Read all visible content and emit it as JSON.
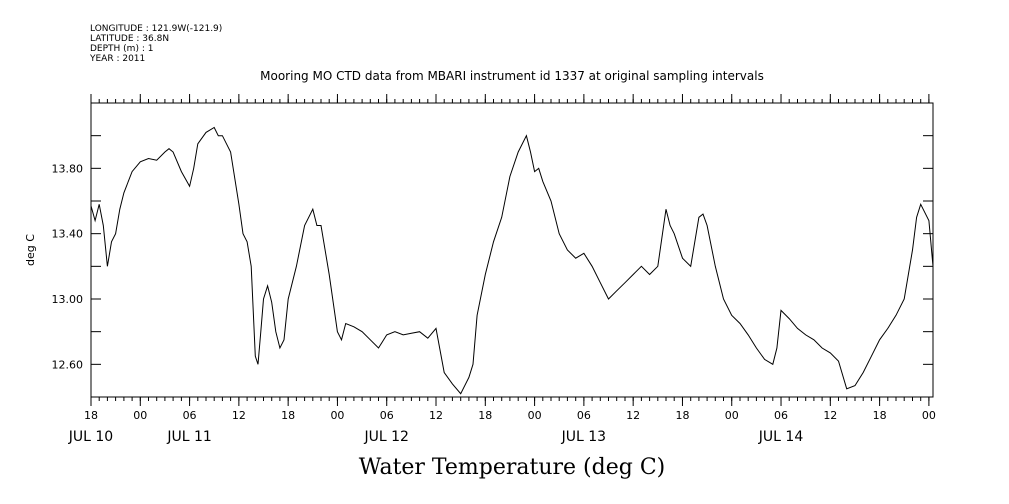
{
  "header": {
    "meta_lines": [
      "LONGITUDE : 121.9W(-121.9)",
      "LATITUDE : 36.8N",
      "DEPTH (m) : 1",
      "YEAR : 2011"
    ]
  },
  "chart_data": {
    "type": "line",
    "title": "Mooring MO CTD data from MBARI instrument id 1337 at original sampling intervals",
    "xlabel": "Water Temperature (deg C)",
    "ylabel": "deg C",
    "ylim": [
      12.4,
      14.2
    ],
    "yticks": [
      12.6,
      13.0,
      13.4,
      13.8
    ],
    "ytick_labels": [
      "12.60",
      "13.00",
      "13.40",
      "13.80"
    ],
    "xlim": [
      "2011-07-10 18:00",
      "2011-07-15 00:30"
    ],
    "xticks": [
      {
        "label": "18",
        "time": "2011-07-10 18:00"
      },
      {
        "label": "00",
        "time": "2011-07-11 00:00"
      },
      {
        "label": "06",
        "time": "2011-07-11 06:00"
      },
      {
        "label": "12",
        "time": "2011-07-11 12:00"
      },
      {
        "label": "18",
        "time": "2011-07-11 18:00"
      },
      {
        "label": "00",
        "time": "2011-07-12 00:00"
      },
      {
        "label": "06",
        "time": "2011-07-12 06:00"
      },
      {
        "label": "12",
        "time": "2011-07-12 12:00"
      },
      {
        "label": "18",
        "time": "2011-07-12 18:00"
      },
      {
        "label": "00",
        "time": "2011-07-13 00:00"
      },
      {
        "label": "06",
        "time": "2011-07-13 06:00"
      },
      {
        "label": "12",
        "time": "2011-07-13 12:00"
      },
      {
        "label": "18",
        "time": "2011-07-13 18:00"
      },
      {
        "label": "00",
        "time": "2011-07-14 00:00"
      },
      {
        "label": "06",
        "time": "2011-07-14 06:00"
      },
      {
        "label": "12",
        "time": "2011-07-14 12:00"
      },
      {
        "label": "18",
        "time": "2011-07-14 18:00"
      },
      {
        "label": "00",
        "time": "2011-07-15 00:00"
      }
    ],
    "day_labels": [
      {
        "label": "JUL 10",
        "time": "2011-07-10 18:00"
      },
      {
        "label": "JUL 11",
        "time": "2011-07-11 06:00"
      },
      {
        "label": "JUL 12",
        "time": "2011-07-12 06:00"
      },
      {
        "label": "JUL 13",
        "time": "2011-07-13 06:00"
      },
      {
        "label": "JUL 14",
        "time": "2011-07-14 06:00"
      }
    ],
    "grid": false,
    "series": [
      {
        "color": "#000000",
        "x": [
          "2011-07-10 18:00",
          "2011-07-10 18:30",
          "2011-07-10 19:00",
          "2011-07-10 19:30",
          "2011-07-10 20:00",
          "2011-07-10 20:30",
          "2011-07-10 21:00",
          "2011-07-10 21:30",
          "2011-07-10 22:00",
          "2011-07-10 23:00",
          "2011-07-11 00:00",
          "2011-07-11 01:00",
          "2011-07-11 02:00",
          "2011-07-11 03:00",
          "2011-07-11 03:30",
          "2011-07-11 04:00",
          "2011-07-11 05:00",
          "2011-07-11 06:00",
          "2011-07-11 06:30",
          "2011-07-11 07:00",
          "2011-07-11 08:00",
          "2011-07-11 09:00",
          "2011-07-11 09:30",
          "2011-07-11 10:00",
          "2011-07-11 11:00",
          "2011-07-11 12:00",
          "2011-07-11 12:30",
          "2011-07-11 13:00",
          "2011-07-11 13:30",
          "2011-07-11 14:00",
          "2011-07-11 14:20",
          "2011-07-11 14:40",
          "2011-07-11 15:00",
          "2011-07-11 15:30",
          "2011-07-11 16:00",
          "2011-07-11 16:30",
          "2011-07-11 17:00",
          "2011-07-11 17:30",
          "2011-07-11 18:00",
          "2011-07-11 19:00",
          "2011-07-11 20:00",
          "2011-07-11 21:00",
          "2011-07-11 21:30",
          "2011-07-11 22:00",
          "2011-07-11 23:00",
          "2011-07-12 00:00",
          "2011-07-12 00:30",
          "2011-07-12 01:00",
          "2011-07-12 02:00",
          "2011-07-12 03:00",
          "2011-07-12 04:00",
          "2011-07-12 05:00",
          "2011-07-12 06:00",
          "2011-07-12 07:00",
          "2011-07-12 08:00",
          "2011-07-12 09:00",
          "2011-07-12 10:00",
          "2011-07-12 11:00",
          "2011-07-12 12:00",
          "2011-07-12 13:00",
          "2011-07-12 14:00",
          "2011-07-12 15:00",
          "2011-07-12 16:00",
          "2011-07-12 16:30",
          "2011-07-12 17:00",
          "2011-07-12 18:00",
          "2011-07-12 19:00",
          "2011-07-12 20:00",
          "2011-07-12 21:00",
          "2011-07-12 22:00",
          "2011-07-12 23:00",
          "2011-07-12 23:30",
          "2011-07-13 00:00",
          "2011-07-13 00:30",
          "2011-07-13 01:00",
          "2011-07-13 02:00",
          "2011-07-13 03:00",
          "2011-07-13 04:00",
          "2011-07-13 05:00",
          "2011-07-13 06:00",
          "2011-07-13 07:00",
          "2011-07-13 08:00",
          "2011-07-13 09:00",
          "2011-07-13 10:00",
          "2011-07-13 11:00",
          "2011-07-13 12:00",
          "2011-07-13 13:00",
          "2011-07-13 14:00",
          "2011-07-13 15:00",
          "2011-07-13 16:00",
          "2011-07-13 16:30",
          "2011-07-13 17:00",
          "2011-07-13 18:00",
          "2011-07-13 19:00",
          "2011-07-13 20:00",
          "2011-07-13 20:30",
          "2011-07-13 21:00",
          "2011-07-13 22:00",
          "2011-07-13 23:00",
          "2011-07-14 00:00",
          "2011-07-14 01:00",
          "2011-07-14 02:00",
          "2011-07-14 03:00",
          "2011-07-14 04:00",
          "2011-07-14 05:00",
          "2011-07-14 05:30",
          "2011-07-14 06:00",
          "2011-07-14 07:00",
          "2011-07-14 08:00",
          "2011-07-14 09:00",
          "2011-07-14 10:00",
          "2011-07-14 11:00",
          "2011-07-14 12:00",
          "2011-07-14 13:00",
          "2011-07-14 14:00",
          "2011-07-14 15:00",
          "2011-07-14 16:00",
          "2011-07-14 17:00",
          "2011-07-14 18:00",
          "2011-07-14 19:00",
          "2011-07-14 20:00",
          "2011-07-14 21:00",
          "2011-07-14 22:00",
          "2011-07-14 22:30",
          "2011-07-14 23:00",
          "2011-07-15 00:00",
          "2011-07-15 00:30"
        ],
        "y": [
          13.57,
          13.48,
          13.58,
          13.45,
          13.2,
          13.35,
          13.4,
          13.55,
          13.65,
          13.78,
          13.84,
          13.86,
          13.85,
          13.9,
          13.92,
          13.9,
          13.78,
          13.69,
          13.8,
          13.95,
          14.02,
          14.05,
          14.0,
          14.0,
          13.9,
          13.58,
          13.4,
          13.35,
          13.2,
          12.65,
          12.6,
          12.8,
          13.0,
          13.08,
          12.98,
          12.8,
          12.7,
          12.75,
          13.0,
          13.2,
          13.45,
          13.55,
          13.45,
          13.45,
          13.15,
          12.8,
          12.75,
          12.85,
          12.83,
          12.8,
          12.75,
          12.7,
          12.78,
          12.8,
          12.78,
          12.79,
          12.8,
          12.76,
          12.82,
          12.55,
          12.48,
          12.42,
          12.52,
          12.6,
          12.9,
          13.15,
          13.35,
          13.5,
          13.75,
          13.9,
          14.0,
          13.9,
          13.78,
          13.8,
          13.72,
          13.6,
          13.4,
          13.3,
          13.25,
          13.28,
          13.2,
          13.1,
          13.0,
          13.05,
          13.1,
          13.15,
          13.2,
          13.15,
          13.2,
          13.55,
          13.45,
          13.4,
          13.25,
          13.2,
          13.5,
          13.52,
          13.45,
          13.2,
          13.0,
          12.9,
          12.85,
          12.78,
          12.7,
          12.63,
          12.6,
          12.7,
          12.93,
          12.88,
          12.82,
          12.78,
          12.75,
          12.7,
          12.67,
          12.62,
          12.45,
          12.47,
          12.55,
          12.65,
          12.75,
          12.82,
          12.9,
          13.0,
          13.3,
          13.5,
          13.58,
          13.48,
          13.2
        ]
      }
    ]
  }
}
